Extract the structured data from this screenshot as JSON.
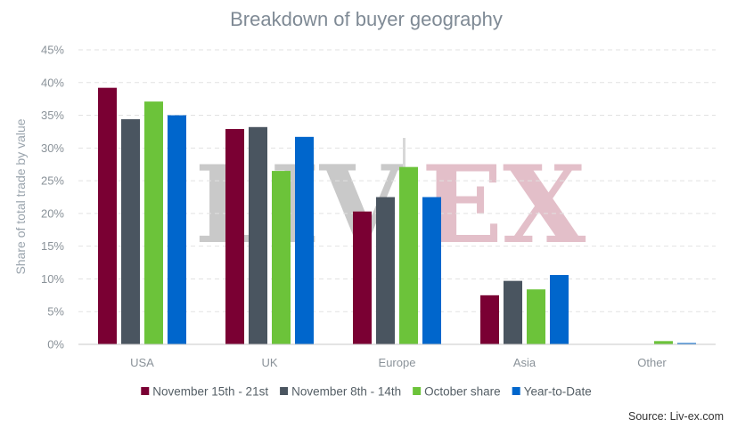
{
  "chart_data": {
    "type": "bar",
    "title": "Breakdown of buyer geography",
    "xlabel": "",
    "ylabel": "Share of total trade by value",
    "categories": [
      "USA",
      "UK",
      "Europe",
      "Asia",
      "Other"
    ],
    "ylim": [
      0,
      45
    ],
    "yticks": [
      "0%",
      "5%",
      "10%",
      "15%",
      "20%",
      "25%",
      "30%",
      "35%",
      "40%",
      "45%"
    ],
    "grid": true,
    "legend_position": "bottom",
    "series": [
      {
        "name": "November 15th - 21st",
        "color": "#7a0033",
        "values": [
          39.2,
          32.9,
          20.3,
          7.5,
          0
        ]
      },
      {
        "name": "November 8th - 14th",
        "color": "#4a5560",
        "values": [
          34.4,
          33.2,
          22.5,
          9.7,
          0
        ]
      },
      {
        "name": "October share",
        "color": "#6cc33a",
        "values": [
          37.1,
          26.5,
          27.1,
          8.4,
          0.5
        ]
      },
      {
        "name": "Year-to-Date",
        "color": "#0066cc",
        "values": [
          35.0,
          31.7,
          22.5,
          10.6,
          0.2
        ]
      }
    ],
    "source": "Source: Liv-ex.com"
  },
  "watermark": {
    "left": "LIV",
    "right": "EX",
    "left_color": "#c9c9c9",
    "right_color": "#e3bfc9"
  }
}
